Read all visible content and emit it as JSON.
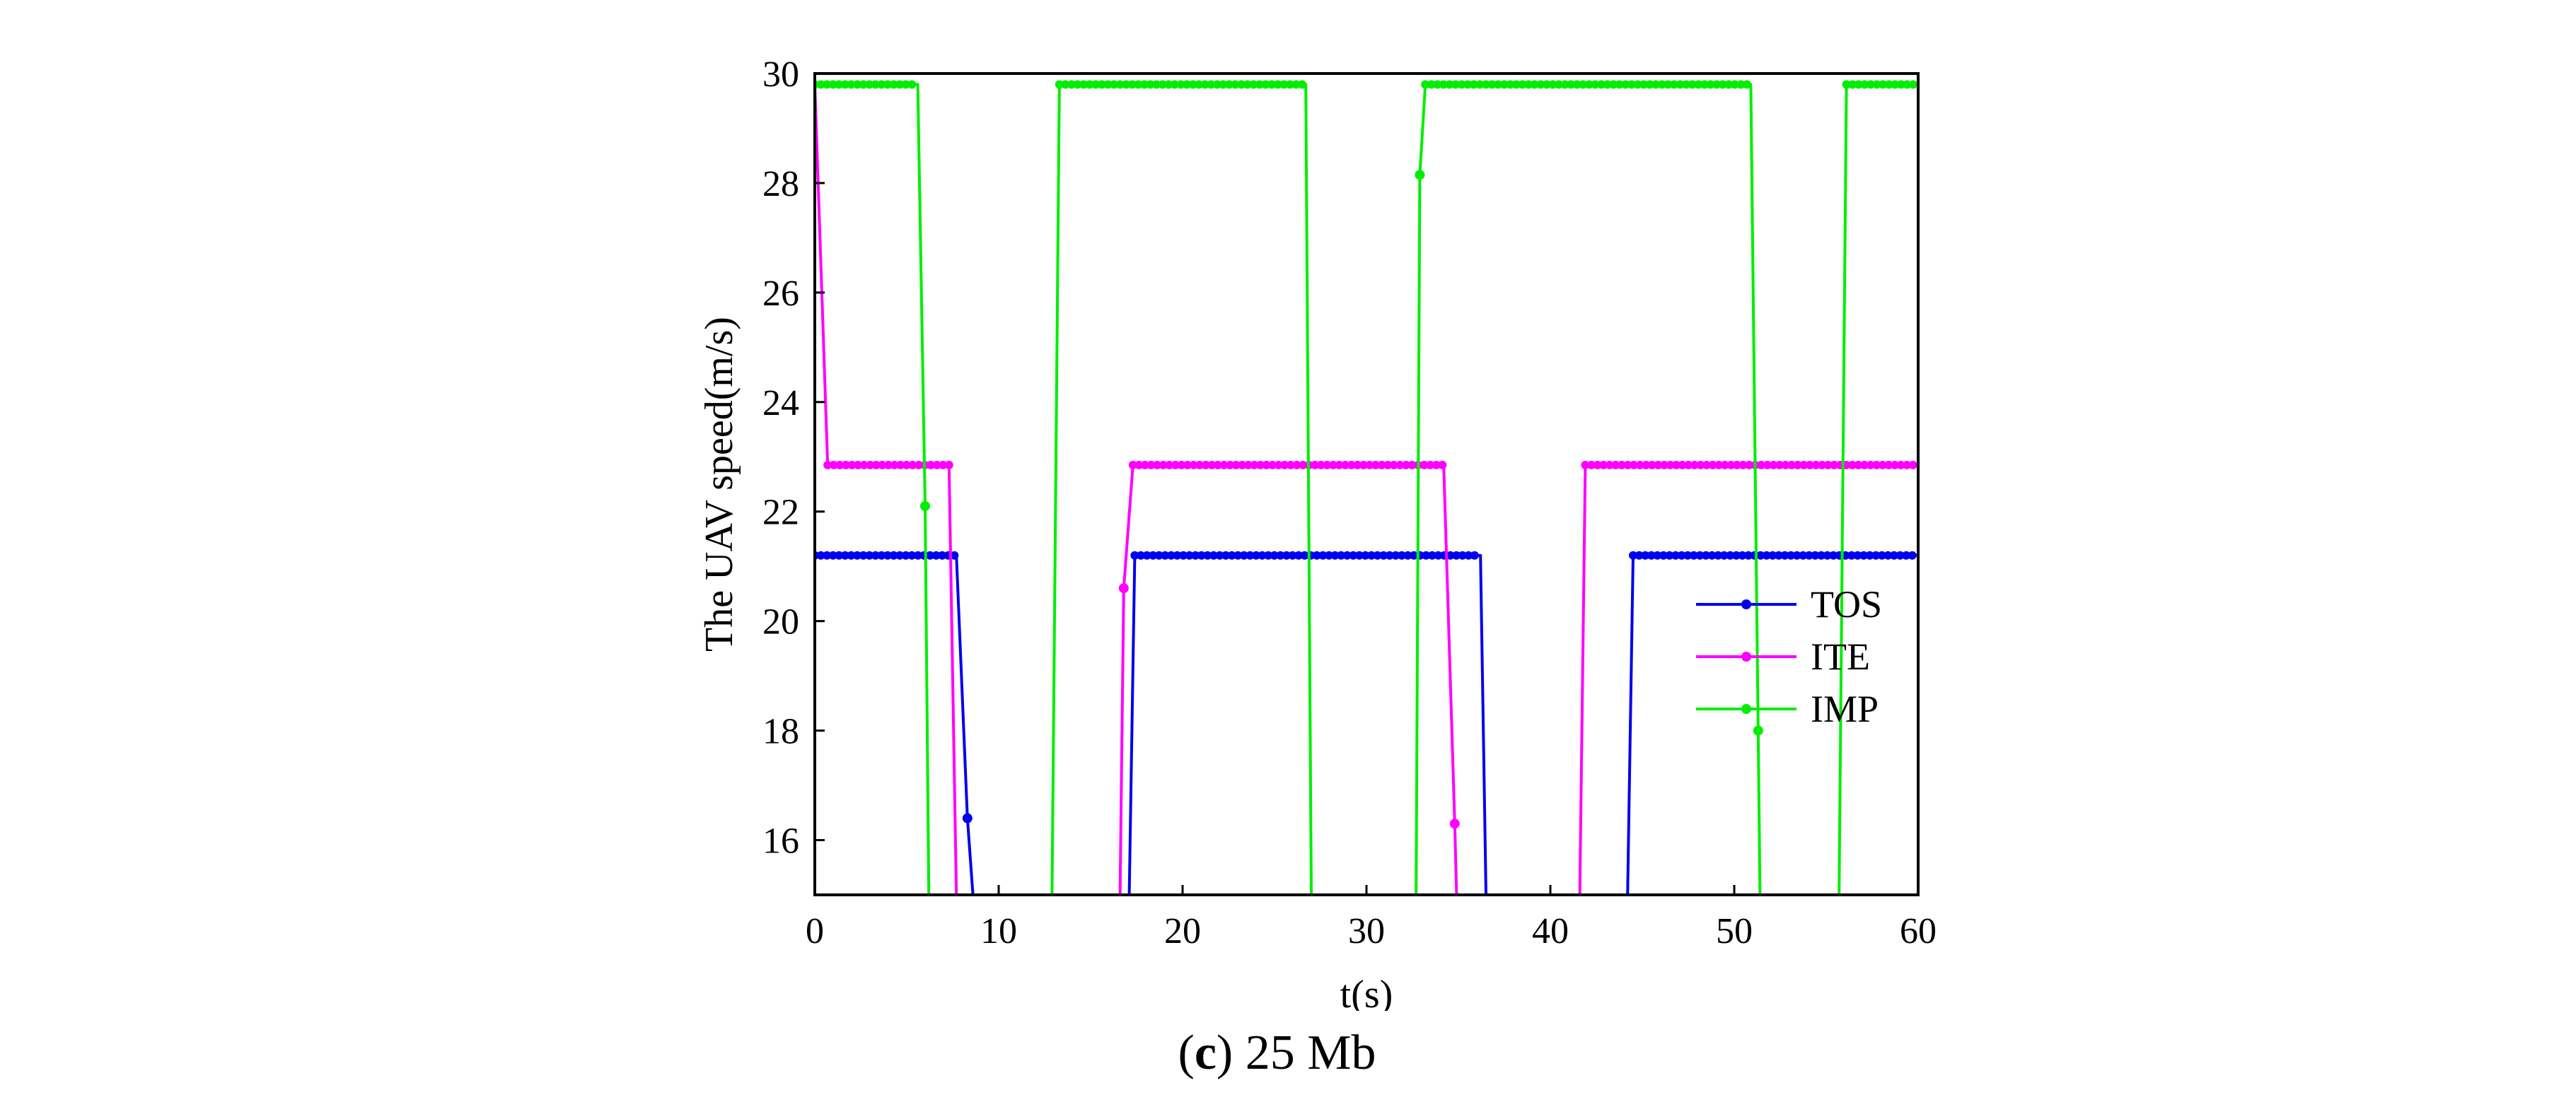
{
  "chart_data": {
    "type": "line",
    "title": "",
    "xlabel": "t(s)",
    "ylabel": "The UAV speed(m/s)",
    "xlim": [
      0,
      60
    ],
    "ylim": [
      15,
      30
    ],
    "xticks": [
      0,
      10,
      20,
      30,
      40,
      50,
      60
    ],
    "yticks": [
      16,
      18,
      20,
      22,
      24,
      26,
      28,
      30
    ],
    "legend_position": "center-right",
    "grid": false,
    "series": [
      {
        "name": "TOS",
        "color": "#0000ee",
        "segments": [
          {
            "x": [
              0,
              7.7,
              8.3,
              8.6
            ],
            "y": [
              21.2,
              21.2,
              16.4,
              15
            ]
          },
          {
            "x": [
              17.1,
              17.4,
              36.2,
              36.5
            ],
            "y": [
              15,
              21.2,
              21.2,
              15
            ]
          },
          {
            "x": [
              44.2,
              44.5,
              60
            ],
            "y": [
              15,
              21.2,
              21.2
            ]
          }
        ],
        "markers": [
          {
            "x": 8.3,
            "y": 16.4
          }
        ]
      },
      {
        "name": "ITE",
        "color": "#ff00ff",
        "segments": [
          {
            "x": [
              0,
              0.7,
              7.3,
              7.7
            ],
            "y": [
              29.8,
              22.85,
              22.85,
              15
            ]
          },
          {
            "x": [
              16.6,
              16.8,
              17.3,
              34.2,
              34.8,
              34.9
            ],
            "y": [
              15,
              20.6,
              22.85,
              22.85,
              16.3,
              15
            ]
          },
          {
            "x": [
              41.6,
              41.9,
              60
            ],
            "y": [
              15,
              22.85,
              22.85
            ]
          }
        ],
        "markers": [
          {
            "x": 16.8,
            "y": 20.6
          },
          {
            "x": 34.8,
            "y": 16.3
          }
        ]
      },
      {
        "name": "IMP",
        "color": "#00ee00",
        "segments": [
          {
            "x": [
              0,
              5.6,
              6.0,
              6.2
            ],
            "y": [
              29.8,
              29.8,
              22.1,
              15
            ]
          },
          {
            "x": [
              12.9,
              13.3,
              26.7,
              27.0
            ],
            "y": [
              15,
              29.8,
              29.8,
              15
            ]
          },
          {
            "x": [
              32.7,
              32.9,
              33.2,
              50.9,
              51.3,
              51.4
            ],
            "y": [
              15,
              28.15,
              29.8,
              29.8,
              18.0,
              15
            ]
          },
          {
            "x": [
              55.7,
              56.1,
              60
            ],
            "y": [
              15,
              29.8,
              29.8
            ]
          }
        ],
        "markers": [
          {
            "x": 6.0,
            "y": 22.1
          },
          {
            "x": 32.9,
            "y": 28.15
          },
          {
            "x": 51.3,
            "y": 18.0
          }
        ]
      }
    ]
  },
  "caption": {
    "letter_open": "(",
    "letter": "c",
    "letter_close": ")",
    "text": " 25 Mb"
  }
}
